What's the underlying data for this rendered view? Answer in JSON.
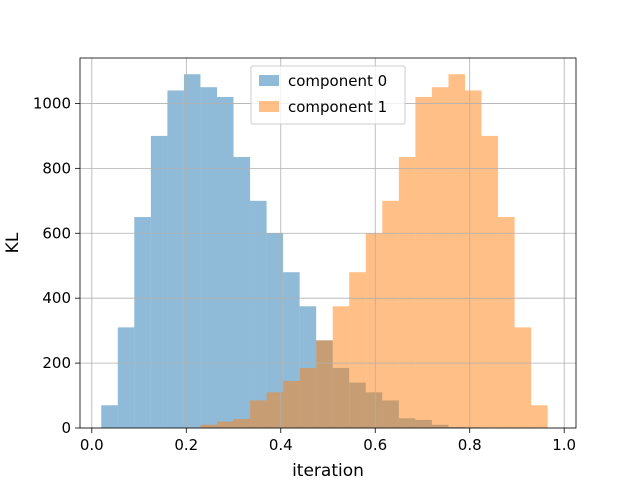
{
  "chart_data": {
    "type": "bar",
    "histogram": true,
    "title": "",
    "xlabel": "iteration",
    "ylabel": "KL",
    "xlim": [
      -0.025,
      1.025
    ],
    "ylim": [
      0,
      1140
    ],
    "xticks": [
      0.0,
      0.2,
      0.4,
      0.6,
      0.8,
      1.0
    ],
    "xtick_labels": [
      "0.0",
      "0.2",
      "0.4",
      "0.6",
      "0.8",
      "1.0"
    ],
    "yticks": [
      0,
      200,
      400,
      600,
      800,
      1000
    ],
    "ytick_labels": [
      "0",
      "200",
      "400",
      "600",
      "800",
      "1000"
    ],
    "grid": true,
    "legend_position": "top-center",
    "series": [
      {
        "name": "component 0",
        "color": "#1f77b4",
        "alpha": 0.5,
        "bins": [
          {
            "x0": 0.02,
            "x1": 0.055,
            "count": 70
          },
          {
            "x0": 0.055,
            "x1": 0.09,
            "count": 310
          },
          {
            "x0": 0.09,
            "x1": 0.125,
            "count": 650
          },
          {
            "x0": 0.125,
            "x1": 0.16,
            "count": 900
          },
          {
            "x0": 0.16,
            "x1": 0.195,
            "count": 1040
          },
          {
            "x0": 0.195,
            "x1": 0.23,
            "count": 1090
          },
          {
            "x0": 0.23,
            "x1": 0.265,
            "count": 1050
          },
          {
            "x0": 0.265,
            "x1": 0.3,
            "count": 1020
          },
          {
            "x0": 0.3,
            "x1": 0.335,
            "count": 835
          },
          {
            "x0": 0.335,
            "x1": 0.37,
            "count": 700
          },
          {
            "x0": 0.37,
            "x1": 0.405,
            "count": 600
          },
          {
            "x0": 0.405,
            "x1": 0.44,
            "count": 480
          },
          {
            "x0": 0.44,
            "x1": 0.475,
            "count": 375
          },
          {
            "x0": 0.475,
            "x1": 0.51,
            "count": 270
          },
          {
            "x0": 0.51,
            "x1": 0.545,
            "count": 185
          },
          {
            "x0": 0.545,
            "x1": 0.58,
            "count": 140
          },
          {
            "x0": 0.58,
            "x1": 0.615,
            "count": 110
          },
          {
            "x0": 0.615,
            "x1": 0.65,
            "count": 85
          },
          {
            "x0": 0.65,
            "x1": 0.685,
            "count": 30
          },
          {
            "x0": 0.685,
            "x1": 0.72,
            "count": 25
          },
          {
            "x0": 0.72,
            "x1": 0.755,
            "count": 10
          },
          {
            "x0": 0.755,
            "x1": 0.79,
            "count": 3
          },
          {
            "x0": 0.79,
            "x1": 0.825,
            "count": 2
          }
        ]
      },
      {
        "name": "component 1",
        "color": "#ff7f0e",
        "alpha": 0.5,
        "bins": [
          {
            "x0": 0.23,
            "x1": 0.265,
            "count": 10
          },
          {
            "x0": 0.265,
            "x1": 0.3,
            "count": 20
          },
          {
            "x0": 0.3,
            "x1": 0.335,
            "count": 28
          },
          {
            "x0": 0.335,
            "x1": 0.37,
            "count": 85
          },
          {
            "x0": 0.37,
            "x1": 0.405,
            "count": 110
          },
          {
            "x0": 0.405,
            "x1": 0.44,
            "count": 145
          },
          {
            "x0": 0.44,
            "x1": 0.475,
            "count": 185
          },
          {
            "x0": 0.475,
            "x1": 0.51,
            "count": 270
          },
          {
            "x0": 0.51,
            "x1": 0.545,
            "count": 375
          },
          {
            "x0": 0.545,
            "x1": 0.58,
            "count": 480
          },
          {
            "x0": 0.58,
            "x1": 0.615,
            "count": 600
          },
          {
            "x0": 0.615,
            "x1": 0.65,
            "count": 700
          },
          {
            "x0": 0.65,
            "x1": 0.685,
            "count": 835
          },
          {
            "x0": 0.685,
            "x1": 0.72,
            "count": 1020
          },
          {
            "x0": 0.72,
            "x1": 0.755,
            "count": 1050
          },
          {
            "x0": 0.755,
            "x1": 0.79,
            "count": 1090
          },
          {
            "x0": 0.79,
            "x1": 0.825,
            "count": 1040
          },
          {
            "x0": 0.825,
            "x1": 0.86,
            "count": 900
          },
          {
            "x0": 0.86,
            "x1": 0.895,
            "count": 650
          },
          {
            "x0": 0.895,
            "x1": 0.93,
            "count": 310
          },
          {
            "x0": 0.93,
            "x1": 0.965,
            "count": 70
          }
        ]
      }
    ]
  }
}
